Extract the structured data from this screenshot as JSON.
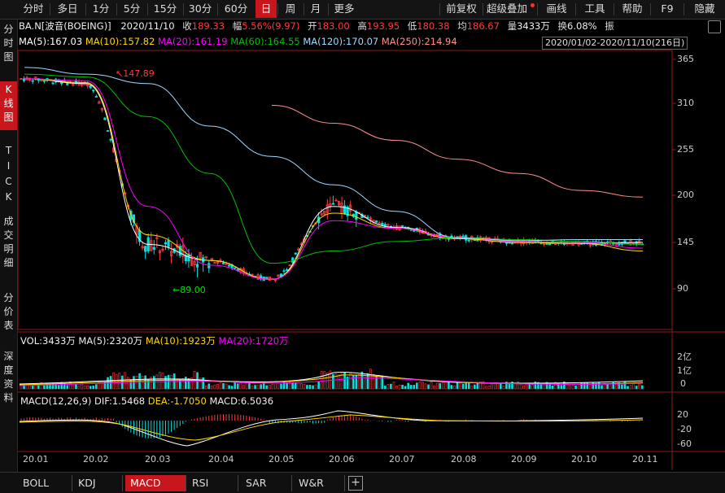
{
  "toolbar": {
    "periods": [
      "分时",
      "多日",
      "1分",
      "5分",
      "15分",
      "30分",
      "60分",
      "日",
      "周",
      "月",
      "更多"
    ],
    "selected_period": "日",
    "right_items": [
      "前复权",
      "超级叠加",
      "画线",
      "工具",
      "帮助",
      "F9",
      "隐藏"
    ]
  },
  "sidebar": [
    {
      "label": "分时图",
      "selected": false
    },
    {
      "label": "K线图",
      "selected": true
    },
    {
      "label": "TICK",
      "selected": false
    },
    {
      "label": "成交明细",
      "selected": false
    },
    {
      "label": "分价表",
      "selected": false
    },
    {
      "label": "深度资料",
      "selected": false
    }
  ],
  "quote": {
    "name": "BA.N[波音(BOEING)]",
    "date": "2020/11/10",
    "close_label": "收",
    "close": "189.33",
    "change_label": "幅",
    "change_pct": "5.56%",
    "change_abs": "(9.97)",
    "open_label": "开",
    "open": "183.00",
    "high_label": "高",
    "high": "193.95",
    "low_label": "低",
    "low": "180.38",
    "avg_label": "均",
    "avg": "186.67",
    "volume_label": "量",
    "volume": "3433万",
    "turnover_label": "换",
    "turnover": "6.08%",
    "amp_label": "振"
  },
  "ma_line": {
    "ma5": "MA(5):167.03",
    "ma10": "MA(10):157.82",
    "ma20": "MA(20):161.19",
    "ma60": "MA(60):164.55",
    "ma120": "MA(120):170.07",
    "ma250": "MA(250):214.94"
  },
  "range_text": "2020/01/02-2020/11/10(216日)",
  "price_axis": [
    "365",
    "310",
    "255",
    "200",
    "145",
    "90"
  ],
  "annotations": {
    "high": "147.89",
    "low": "89.00"
  },
  "vol_line": {
    "vol": "VOL:3433万",
    "ma5": "MA(5):2320万",
    "ma10": "MA(10):1923万",
    "ma20": "MA(20):1720万"
  },
  "vol_axis": [
    "2亿",
    "1亿",
    "0"
  ],
  "macd_line": {
    "title": "MACD(12,26,9)",
    "dif": "DIF:1.5468",
    "dea": "DEA:-1.7050",
    "macd": "MACD:6.5036"
  },
  "macd_axis": [
    "20",
    "-20",
    "-60"
  ],
  "date_axis": [
    "20.01",
    "20.02",
    "20.03",
    "20.04",
    "20.05",
    "20.06",
    "20.07",
    "20.08",
    "20.09",
    "20.10",
    "20.11"
  ],
  "tabs": [
    "BOLL",
    "KDJ",
    "MACD",
    "RSI",
    "SAR",
    "W&R"
  ],
  "selected_tab": "MACD",
  "colors": {
    "up": "#ff3b3b",
    "down": "#00e0e0",
    "ma5": "#ffffff",
    "ma10": "#ffd700",
    "ma20": "#ff00ff",
    "ma60": "#00c000",
    "ma120": "#9fd8ff",
    "ma250": "#ff8f8f",
    "accent": "#c8161d"
  },
  "chart_data": {
    "type": "line",
    "x": [
      "20.01",
      "20.02",
      "20.03",
      "20.04",
      "20.05",
      "20.06",
      "20.07",
      "20.08",
      "20.09",
      "20.10",
      "20.11"
    ],
    "ylim": [
      75,
      370
    ],
    "series": [
      {
        "name": "MA(5)",
        "values": [
          340,
          335,
          165,
          148,
          128,
          205,
          183,
          172,
          168,
          166,
          167
        ]
      },
      {
        "name": "MA(10)",
        "values": [
          340,
          336,
          175,
          148,
          128,
          198,
          182,
          171,
          167,
          166,
          158
        ]
      },
      {
        "name": "MA(20)",
        "values": [
          340,
          338,
          205,
          143,
          128,
          190,
          182,
          172,
          168,
          167,
          161
        ]
      },
      {
        "name": "MA(60)",
        "values": [
          345,
          342,
          300,
          240,
          145,
          158,
          168,
          172,
          170,
          168,
          165
        ]
      },
      {
        "name": "MA(120)",
        "values": [
          352,
          345,
          335,
          290,
          258,
          228,
          200,
          172,
          169,
          170,
          170
        ]
      },
      {
        "name": "MA(250)",
        "values": [
          null,
          null,
          null,
          null,
          312,
          293,
          275,
          255,
          240,
          222,
          215
        ]
      }
    ]
  }
}
